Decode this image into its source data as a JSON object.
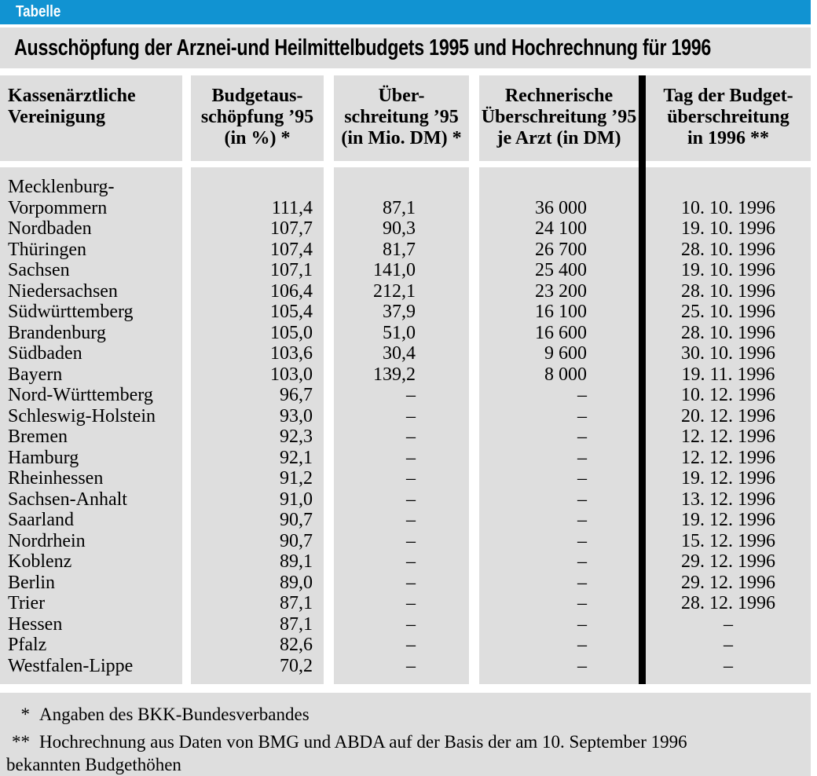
{
  "tag_label": "Tabelle",
  "title": "Ausschöpfung der Arznei-und Heilmittelbudgets 1995 und Hochrechnung für 1996",
  "colors": {
    "accent_blue": "#1193d2",
    "panel_gray": "#dedede",
    "divider_black": "#000000"
  },
  "table": {
    "columns": [
      {
        "label": "Kassenärztliche\nVereinigung"
      },
      {
        "label": "Budgetaus-\nschöpfung ’95\n(in %) *"
      },
      {
        "label": "Über-\nschreitung ’95\n(in Mio. DM) *"
      },
      {
        "label": "Rechnerische\nÜberschreitung ’95\nje Arzt (in DM)"
      },
      {
        "label": "Tag der Budget-\nüberschreitung\nin 1996 **"
      }
    ],
    "rows": [
      {
        "name": "Mecklenburg-\nVorpommern",
        "budget_pct": "111,4",
        "over_mio_dm": "87,1",
        "over_per_arzt_dm": "36 000",
        "overrun_day_1996": "10. 10. 1996"
      },
      {
        "name": "Nordbaden",
        "budget_pct": "107,7",
        "over_mio_dm": "90,3",
        "over_per_arzt_dm": "24 100",
        "overrun_day_1996": "19. 10. 1996"
      },
      {
        "name": "Thüringen",
        "budget_pct": "107,4",
        "over_mio_dm": "81,7",
        "over_per_arzt_dm": "26 700",
        "overrun_day_1996": "28. 10. 1996"
      },
      {
        "name": "Sachsen",
        "budget_pct": "107,1",
        "over_mio_dm": "141,0",
        "over_per_arzt_dm": "25 400",
        "overrun_day_1996": "19. 10. 1996"
      },
      {
        "name": "Niedersachsen",
        "budget_pct": "106,4",
        "over_mio_dm": "212,1",
        "over_per_arzt_dm": "23 200",
        "overrun_day_1996": "28. 10. 1996"
      },
      {
        "name": "Südwürttemberg",
        "budget_pct": "105,4",
        "over_mio_dm": "37,9",
        "over_per_arzt_dm": "16 100",
        "overrun_day_1996": "25. 10. 1996"
      },
      {
        "name": "Brandenburg",
        "budget_pct": "105,0",
        "over_mio_dm": "51,0",
        "over_per_arzt_dm": "16 600",
        "overrun_day_1996": "28. 10. 1996"
      },
      {
        "name": "Südbaden",
        "budget_pct": "103,6",
        "over_mio_dm": "30,4",
        "over_per_arzt_dm": "9 600",
        "overrun_day_1996": "30. 10. 1996"
      },
      {
        "name": "Bayern",
        "budget_pct": "103,0",
        "over_mio_dm": "139,2",
        "over_per_arzt_dm": "8 000",
        "overrun_day_1996": "19. 11. 1996"
      },
      {
        "name": "Nord-Württemberg",
        "budget_pct": "96,7",
        "over_mio_dm": "–",
        "over_per_arzt_dm": "–",
        "overrun_day_1996": "10. 12. 1996"
      },
      {
        "name": "Schleswig-Holstein",
        "budget_pct": "93,0",
        "over_mio_dm": "–",
        "over_per_arzt_dm": "–",
        "overrun_day_1996": "20. 12. 1996"
      },
      {
        "name": "Bremen",
        "budget_pct": "92,3",
        "over_mio_dm": "–",
        "over_per_arzt_dm": "–",
        "overrun_day_1996": "12. 12. 1996"
      },
      {
        "name": "Hamburg",
        "budget_pct": "92,1",
        "over_mio_dm": "–",
        "over_per_arzt_dm": "–",
        "overrun_day_1996": "12. 12. 1996"
      },
      {
        "name": "Rheinhessen",
        "budget_pct": "91,2",
        "over_mio_dm": "–",
        "over_per_arzt_dm": "–",
        "overrun_day_1996": "19. 12. 1996"
      },
      {
        "name": "Sachsen-Anhalt",
        "budget_pct": "91,0",
        "over_mio_dm": "–",
        "over_per_arzt_dm": "–",
        "overrun_day_1996": "13. 12. 1996"
      },
      {
        "name": "Saarland",
        "budget_pct": "90,7",
        "over_mio_dm": "–",
        "over_per_arzt_dm": "–",
        "overrun_day_1996": "19. 12. 1996"
      },
      {
        "name": "Nordrhein",
        "budget_pct": "90,7",
        "over_mio_dm": "–",
        "over_per_arzt_dm": "–",
        "overrun_day_1996": "15. 12. 1996"
      },
      {
        "name": "Koblenz",
        "budget_pct": "89,1",
        "over_mio_dm": "–",
        "over_per_arzt_dm": "–",
        "overrun_day_1996": "29. 12. 1996"
      },
      {
        "name": "Berlin",
        "budget_pct": "89,0",
        "over_mio_dm": "–",
        "over_per_arzt_dm": "–",
        "overrun_day_1996": "29. 12. 1996"
      },
      {
        "name": "Trier",
        "budget_pct": "87,1",
        "over_mio_dm": "–",
        "over_per_arzt_dm": "–",
        "overrun_day_1996": "28. 12. 1996"
      },
      {
        "name": "Hessen",
        "budget_pct": "87,1",
        "over_mio_dm": "–",
        "over_per_arzt_dm": "–",
        "overrun_day_1996": "–"
      },
      {
        "name": "Pfalz",
        "budget_pct": "82,6",
        "over_mio_dm": "–",
        "over_per_arzt_dm": "–",
        "overrun_day_1996": "–"
      },
      {
        "name": "Westfalen-Lippe",
        "budget_pct": "70,2",
        "over_mio_dm": "–",
        "over_per_arzt_dm": "–",
        "overrun_day_1996": "–"
      }
    ]
  },
  "footnotes": [
    {
      "marker": "*",
      "text": "Angaben des BKK-Bundesverbandes",
      "continuation": ""
    },
    {
      "marker": "**",
      "text": "Hochrechnung aus Daten von BMG und ABDA auf der Basis der am 10. September 1996",
      "continuation": "bekannten Budgethöhen"
    }
  ]
}
